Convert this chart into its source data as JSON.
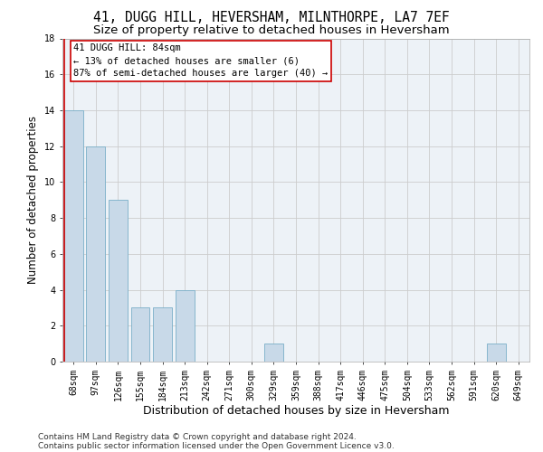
{
  "title": "41, DUGG HILL, HEVERSHAM, MILNTHORPE, LA7 7EF",
  "subtitle": "Size of property relative to detached houses in Heversham",
  "xlabel": "Distribution of detached houses by size in Heversham",
  "ylabel": "Number of detached properties",
  "categories": [
    "68sqm",
    "97sqm",
    "126sqm",
    "155sqm",
    "184sqm",
    "213sqm",
    "242sqm",
    "271sqm",
    "300sqm",
    "329sqm",
    "359sqm",
    "388sqm",
    "417sqm",
    "446sqm",
    "475sqm",
    "504sqm",
    "533sqm",
    "562sqm",
    "591sqm",
    "620sqm",
    "649sqm"
  ],
  "values": [
    14,
    12,
    9,
    3,
    3,
    4,
    0,
    0,
    0,
    1,
    0,
    0,
    0,
    0,
    0,
    0,
    0,
    0,
    0,
    1,
    0
  ],
  "bar_color": "#c8d9e8",
  "bar_edgecolor": "#7aafc8",
  "annotation_line_color": "#cc0000",
  "annotation_box_edgecolor": "#cc0000",
  "highlight_box_line1": "41 DUGG HILL: 84sqm",
  "highlight_box_line2": "← 13% of detached houses are smaller (6)",
  "highlight_box_line3": "87% of semi-detached houses are larger (40) →",
  "grid_color": "#cccccc",
  "background_color": "#edf2f7",
  "ylim": [
    0,
    18
  ],
  "yticks": [
    0,
    2,
    4,
    6,
    8,
    10,
    12,
    14,
    16,
    18
  ],
  "footer_line1": "Contains HM Land Registry data © Crown copyright and database right 2024.",
  "footer_line2": "Contains public sector information licensed under the Open Government Licence v3.0.",
  "title_fontsize": 10.5,
  "subtitle_fontsize": 9.5,
  "xlabel_fontsize": 9,
  "ylabel_fontsize": 8.5,
  "tick_fontsize": 7,
  "annotation_fontsize": 7.5,
  "footer_fontsize": 6.5
}
